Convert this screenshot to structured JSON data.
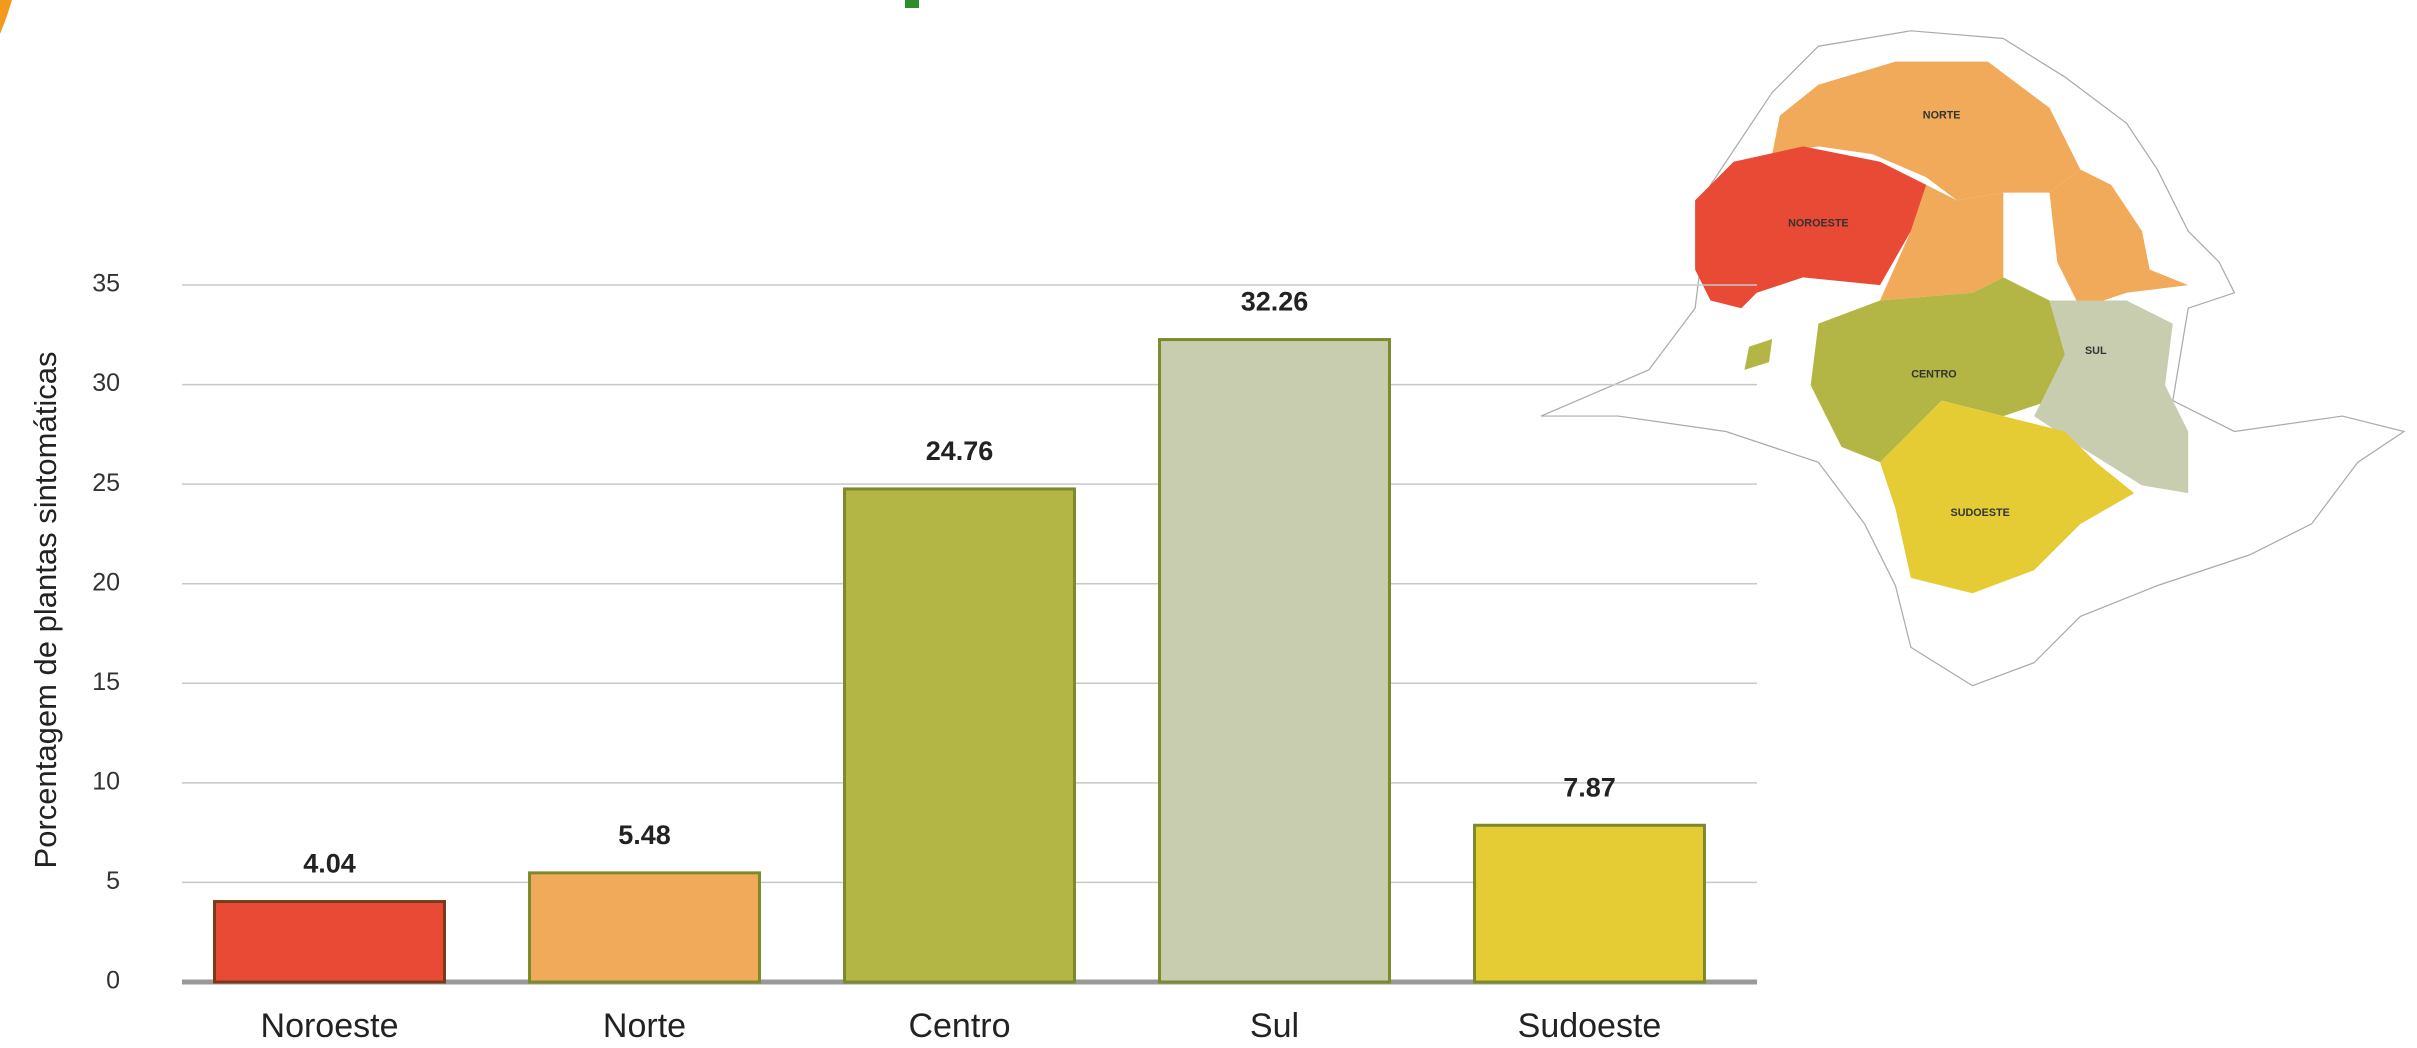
{
  "chart_data": {
    "type": "bar",
    "ylabel": "Porcentagem de plantas sintomáticas",
    "categories": [
      "Noroeste",
      "Norte",
      "Centro",
      "Sul",
      "Sudoeste"
    ],
    "values": [
      4.04,
      5.48,
      24.76,
      32.26,
      7.87
    ],
    "colors": [
      "#e84a35",
      "#f0aa5a",
      "#b3b545",
      "#c8cdb0",
      "#e5cc35"
    ],
    "ylim": [
      0,
      35
    ],
    "yticks": [
      0,
      5,
      10,
      15,
      20,
      25,
      30,
      35
    ],
    "grid": true
  },
  "map": {
    "regions": [
      "NORTE",
      "NOROESTE",
      "CENTRO",
      "SUL",
      "SUDOESTE"
    ]
  }
}
